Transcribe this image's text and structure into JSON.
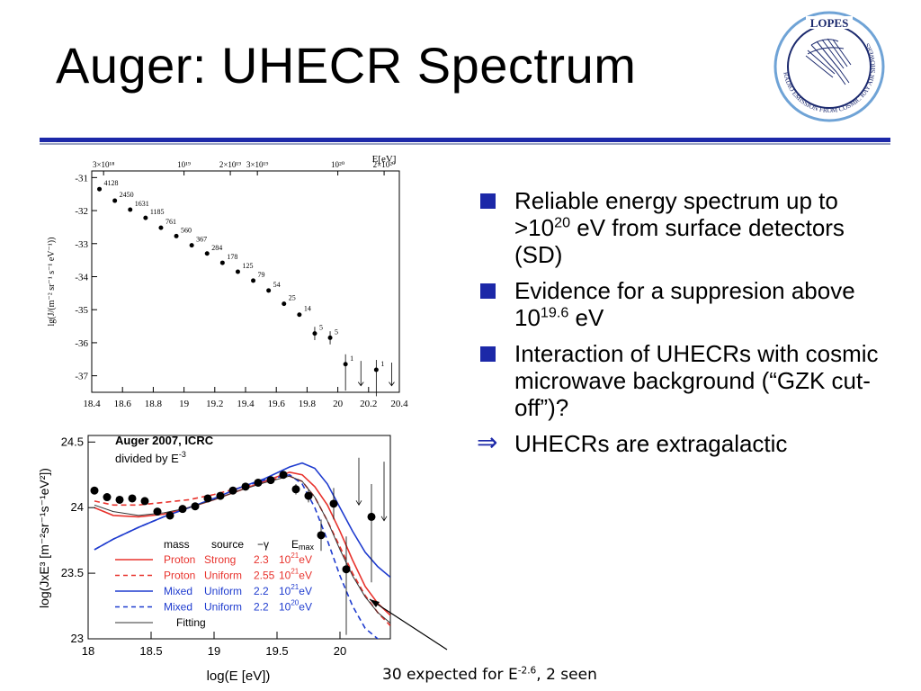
{
  "slide": {
    "title": "Auger: UHECR Spectrum",
    "logo_text": "LOPES",
    "logo_ring_text": "RADIO EMISSION FROM COSMIC RAY AIR SHOWERS",
    "bullets": [
      {
        "parts": [
          "Reliable energy spectrum up to >10",
          "20",
          " eV from surface detectors (SD)"
        ]
      },
      {
        "parts": [
          "Evidence for a suppresion above 10",
          "19.6",
          " eV"
        ]
      },
      {
        "parts": [
          "Interaction of UHECRs with cosmic microwave background (“GZK cut-off”)?",
          "",
          ""
        ]
      },
      {
        "parts": [
          "UHECRs are extragalactic",
          "",
          ""
        ],
        "marker": "arrow"
      }
    ],
    "annotation": {
      "text_before": "30 expected for E",
      "sup": "-2.6",
      "text_after": ", 2 seen"
    },
    "colors": {
      "accent": "#1c28a8",
      "proton": "#e8332d",
      "mixed": "#1f3ccf"
    }
  },
  "chart_data": [
    {
      "type": "scatter",
      "title": "",
      "xlabel": "",
      "ylabel": "lg(J/(m⁻² sr⁻¹ s⁻¹ eV⁻¹))",
      "top_axis_label": "E[eV]",
      "top_ticks": [
        "3×10¹⁸",
        "10¹⁹",
        "2×10¹⁹",
        "3×10¹⁹",
        "10²⁰",
        "2×10²⁰"
      ],
      "top_tick_x": [
        18.477,
        19.0,
        19.301,
        19.477,
        20.0,
        20.301
      ],
      "xlim": [
        18.4,
        20.4
      ],
      "ylim": [
        -37.5,
        -30.8
      ],
      "xticks": [
        "18.4",
        "18.6",
        "18.8",
        "19",
        "19.2",
        "19.4",
        "19.6",
        "19.8",
        "20",
        "20.2",
        "20.4"
      ],
      "yticks": [
        "-31",
        "-32",
        "-33",
        "-34",
        "-35",
        "-36",
        "-37"
      ],
      "points": [
        {
          "x": 18.45,
          "y": -31.35,
          "label": "4128"
        },
        {
          "x": 18.55,
          "y": -31.7,
          "label": "2450"
        },
        {
          "x": 18.65,
          "y": -31.97,
          "label": "1631"
        },
        {
          "x": 18.75,
          "y": -32.22,
          "label": "1185"
        },
        {
          "x": 18.85,
          "y": -32.52,
          "label": "761"
        },
        {
          "x": 18.95,
          "y": -32.77,
          "label": "560"
        },
        {
          "x": 19.05,
          "y": -33.05,
          "label": "367"
        },
        {
          "x": 19.15,
          "y": -33.3,
          "label": "284"
        },
        {
          "x": 19.25,
          "y": -33.58,
          "label": "178"
        },
        {
          "x": 19.35,
          "y": -33.85,
          "label": "125"
        },
        {
          "x": 19.45,
          "y": -34.12,
          "label": "79"
        },
        {
          "x": 19.55,
          "y": -34.42,
          "label": "54"
        },
        {
          "x": 19.65,
          "y": -34.82,
          "label": "25"
        },
        {
          "x": 19.75,
          "y": -35.15,
          "label": "14"
        },
        {
          "x": 19.85,
          "y": -35.72,
          "label": "5",
          "err": 0.2
        },
        {
          "x": 19.95,
          "y": -35.85,
          "label": "5",
          "err": 0.2
        },
        {
          "x": 20.05,
          "y": -36.65,
          "label": "1",
          "err_up": 0.3,
          "err_down": 0.8
        },
        {
          "x": 20.25,
          "y": -36.82,
          "label": "1",
          "err_up": 0.3,
          "err_down": 0.8
        }
      ],
      "upper_limits": [
        {
          "x": 20.15,
          "y_from": -36.55,
          "y_to": -37.3
        },
        {
          "x": 20.35,
          "y_from": -36.6,
          "y_to": -37.3
        }
      ]
    },
    {
      "type": "line",
      "title": "Auger 2007, ICRC",
      "subtitle": "divided by E-3",
      "subtitle_parts": [
        "divided by E",
        "-3"
      ],
      "xlabel": "log(E [eV])",
      "ylabel": "log(JxE³ [m⁻²sr⁻¹s⁻¹eV²])",
      "xlim": [
        18.0,
        20.4
      ],
      "ylim": [
        23.0,
        24.55
      ],
      "xticks": [
        "18",
        "18.5",
        "19",
        "19.5",
        "20"
      ],
      "yticks": [
        "23",
        "23.5",
        "24",
        "24.5"
      ],
      "legend_header": {
        "mass": "mass",
        "source": "source",
        "gamma": "−γ",
        "emax": "E",
        "emax_sub": "max"
      },
      "series": [
        {
          "name": "Proton  Strong  2.3 10²¹eV",
          "mass": "Proton",
          "source": "Strong",
          "gamma": "2.3",
          "emax": "10",
          "emax_exp": "21",
          "emax_unit": "eV",
          "color": "#e8332d",
          "dash": "solid",
          "x": [
            18.05,
            18.2,
            18.4,
            18.6,
            18.8,
            19.0,
            19.2,
            19.4,
            19.6,
            19.7,
            19.8,
            19.9,
            20.0,
            20.1,
            20.2,
            20.3,
            20.4
          ],
          "y": [
            24.0,
            23.94,
            23.93,
            23.95,
            24.0,
            24.06,
            24.13,
            24.2,
            24.27,
            24.25,
            24.16,
            24.02,
            23.82,
            23.6,
            23.4,
            23.27,
            23.18
          ]
        },
        {
          "name": "Proton Uniform  2.55 10²¹eV",
          "mass": "Proton",
          "source": "Uniform",
          "gamma": "2.55",
          "emax": "10",
          "emax_exp": "21",
          "emax_unit": "eV",
          "color": "#e8332d",
          "dash": "dashed",
          "x": [
            18.05,
            18.2,
            18.4,
            18.6,
            18.8,
            19.0,
            19.2,
            19.4,
            19.6,
            19.7,
            19.8,
            19.9,
            20.0,
            20.1,
            20.2,
            20.3,
            20.4
          ],
          "y": [
            24.05,
            24.02,
            24.02,
            24.04,
            24.06,
            24.1,
            24.15,
            24.2,
            24.24,
            24.2,
            24.08,
            23.9,
            23.7,
            23.5,
            23.33,
            23.2,
            23.1
          ]
        },
        {
          "name": "Mixed  Uniform  2.2 10²¹eV",
          "mass": "Mixed",
          "source": "Uniform",
          "gamma": "2.2",
          "emax": "10",
          "emax_exp": "21",
          "emax_unit": "eV",
          "color": "#1f3ccf",
          "dash": "solid",
          "x": [
            18.05,
            18.2,
            18.4,
            18.6,
            18.8,
            19.0,
            19.2,
            19.4,
            19.6,
            19.7,
            19.8,
            19.9,
            20.0,
            20.1,
            20.2,
            20.3,
            20.4
          ],
          "y": [
            23.68,
            23.76,
            23.85,
            23.93,
            24.0,
            24.07,
            24.15,
            24.22,
            24.31,
            24.34,
            24.3,
            24.18,
            24.0,
            23.82,
            23.66,
            23.55,
            23.47
          ]
        },
        {
          "name": "Mixed  Uniform  2.2 10²⁰eV",
          "mass": "Mixed",
          "source": "Uniform",
          "gamma": "2.2",
          "emax": "10",
          "emax_exp": "20",
          "emax_unit": "eV",
          "color": "#1f3ccf",
          "dash": "dashed",
          "x": [
            18.05,
            18.2,
            18.4,
            18.6,
            18.8,
            19.0,
            19.2,
            19.4,
            19.6,
            19.7,
            19.8,
            19.9,
            20.0,
            20.1,
            20.2,
            20.3,
            20.4
          ],
          "y": [
            23.68,
            23.76,
            23.85,
            23.93,
            24.0,
            24.07,
            24.15,
            24.21,
            24.25,
            24.18,
            24.0,
            23.75,
            23.48,
            23.25,
            23.08,
            23.0,
            22.95
          ]
        },
        {
          "name": "Fitting",
          "mass": "Fitting",
          "color": "#333333",
          "dash": "solid",
          "x": [
            18.05,
            18.2,
            18.4,
            18.6,
            18.8,
            19.0,
            19.2,
            19.4,
            19.6,
            19.7,
            19.8,
            19.9,
            20.0,
            20.1,
            20.2,
            20.3,
            20.4
          ],
          "y": [
            24.02,
            23.97,
            23.94,
            23.96,
            24.0,
            24.06,
            24.13,
            24.19,
            24.24,
            24.2,
            24.08,
            23.9,
            23.68,
            23.48,
            23.32,
            23.2,
            23.12
          ]
        }
      ],
      "points": [
        {
          "x": 18.05,
          "y": 24.13,
          "err": 0.02
        },
        {
          "x": 18.15,
          "y": 24.08,
          "err": 0.02
        },
        {
          "x": 18.25,
          "y": 24.06,
          "err": 0.02
        },
        {
          "x": 18.35,
          "y": 24.07,
          "err": 0.02
        },
        {
          "x": 18.45,
          "y": 24.05,
          "err": 0.02
        },
        {
          "x": 18.55,
          "y": 23.97,
          "err": 0.02
        },
        {
          "x": 18.65,
          "y": 23.94,
          "err": 0.02
        },
        {
          "x": 18.75,
          "y": 23.99,
          "err": 0.02
        },
        {
          "x": 18.85,
          "y": 24.01,
          "err": 0.02
        },
        {
          "x": 18.95,
          "y": 24.07,
          "err": 0.02
        },
        {
          "x": 19.05,
          "y": 24.09,
          "err": 0.02
        },
        {
          "x": 19.15,
          "y": 24.13,
          "err": 0.02
        },
        {
          "x": 19.25,
          "y": 24.16,
          "err": 0.02
        },
        {
          "x": 19.35,
          "y": 24.19,
          "err": 0.03
        },
        {
          "x": 19.45,
          "y": 24.21,
          "err": 0.03
        },
        {
          "x": 19.55,
          "y": 24.25,
          "err": 0.03
        },
        {
          "x": 19.65,
          "y": 24.14,
          "err": 0.04
        },
        {
          "x": 19.75,
          "y": 24.09,
          "err": 0.05
        },
        {
          "x": 19.85,
          "y": 23.79,
          "err": 0.12
        },
        {
          "x": 19.95,
          "y": 24.03,
          "err": 0.12
        },
        {
          "x": 20.05,
          "y": 23.53,
          "err_up": 0.25,
          "err_down": 0.5
        },
        {
          "x": 20.25,
          "y": 23.93,
          "err_up": 0.25,
          "err_down": 0.5
        }
      ],
      "upper_limits": [
        {
          "x": 20.15,
          "y_from": 24.38,
          "y_to": 24.02
        },
        {
          "x": 20.35,
          "y_from": 24.35,
          "y_to": 23.9
        }
      ]
    }
  ]
}
